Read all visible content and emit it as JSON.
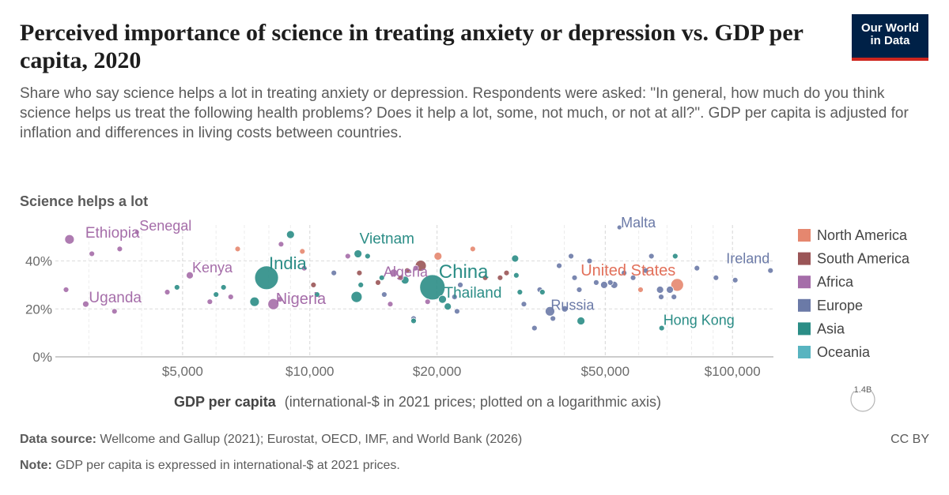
{
  "header": {
    "title": "Perceived importance of science in treating anxiety or depression vs. GDP per capita, 2020",
    "subtitle": "Share who say science helps a lot in treating anxiety or depression. Respondents were asked: \"In general, how much do you think science helps us treat the following health problems? Does it help a lot, some, not much, or not at all?\". GDP per capita is adjusted for inflation and differences in living costs between countries.",
    "logo_line1": "Our World",
    "logo_line2": "in Data"
  },
  "footer": {
    "source_label": "Data source:",
    "source_text": "Wellcome and Gallup (2021); Eurostat, OECD, IMF, and World Bank (2026)",
    "note_label": "Note:",
    "note_text": "GDP per capita is expressed in international-$ at 2021 prices.",
    "license": "CC BY"
  },
  "chart_data": {
    "type": "scatter",
    "title": "Perceived importance of science in treating anxiety or depression vs. GDP per capita, 2020",
    "ylabel": "Science helps a lot",
    "xlabel_bold": "GDP per capita",
    "xlabel_rest": "(international-$ in 2021 prices; plotted on a logarithmic axis)",
    "x_scale": "log",
    "xlim": [
      2500,
      125000
    ],
    "ylim": [
      0,
      55
    ],
    "x_ticks": [
      {
        "value": 5000,
        "label": "$5,000"
      },
      {
        "value": 10000,
        "label": "$10,000"
      },
      {
        "value": 20000,
        "label": "$20,000"
      },
      {
        "value": 50000,
        "label": "$50,000"
      },
      {
        "value": 100000,
        "label": "$100,000"
      }
    ],
    "y_ticks": [
      {
        "value": 0,
        "label": "0%"
      },
      {
        "value": 20,
        "label": "20%"
      },
      {
        "value": 40,
        "label": "40%"
      }
    ],
    "grid": true,
    "legend_position": "right",
    "size_legend_label": "1.4B",
    "legend": [
      {
        "name": "North America",
        "color": "#e5876f"
      },
      {
        "name": "South America",
        "color": "#9a5557"
      },
      {
        "name": "Africa",
        "color": "#a56da9"
      },
      {
        "name": "Europe",
        "color": "#6b7aa7"
      },
      {
        "name": "Asia",
        "color": "#2b8d86"
      },
      {
        "name": "Oceania",
        "color": "#58b4c0"
      }
    ],
    "points": [
      {
        "name": "Ethiopia",
        "x": 2700,
        "y": 49,
        "region": "Africa",
        "r": 6,
        "label": true
      },
      {
        "name": "Senegal",
        "x": 3900,
        "y": 52,
        "region": "Africa",
        "r": 3,
        "label": true
      },
      {
        "name": "Kenya",
        "x": 5200,
        "y": 34,
        "region": "Africa",
        "r": 4.5,
        "label": true
      },
      {
        "name": "India",
        "x": 7900,
        "y": 33,
        "region": "Asia",
        "r": 15,
        "label": true
      },
      {
        "name": "Nigeria",
        "x": 8200,
        "y": 22,
        "region": "Africa",
        "r": 7,
        "label": true
      },
      {
        "name": "Uganda",
        "x": 2950,
        "y": 22,
        "region": "Africa",
        "r": 4,
        "label": true
      },
      {
        "name": "Vietnam",
        "x": 13000,
        "y": 43,
        "region": "Asia",
        "r": 5,
        "label": true
      },
      {
        "name": "China",
        "x": 19500,
        "y": 29,
        "region": "Asia",
        "r": 16,
        "label": true
      },
      {
        "name": "Algeria",
        "x": 15800,
        "y": 35,
        "region": "Africa",
        "r": 5,
        "label": true
      },
      {
        "name": "Thailand",
        "x": 20600,
        "y": 24,
        "region": "Asia",
        "r": 5,
        "label": true
      },
      {
        "name": "United States",
        "x": 74000,
        "y": 30,
        "region": "North America",
        "r": 8,
        "label": true
      },
      {
        "name": "Malta",
        "x": 54000,
        "y": 54,
        "region": "Europe",
        "r": 3,
        "label": true
      },
      {
        "name": "Ireland",
        "x": 123000,
        "y": 36,
        "region": "Europe",
        "r": 3.5,
        "label": true
      },
      {
        "name": "Russia",
        "x": 37000,
        "y": 19,
        "region": "Europe",
        "r": 6,
        "label": true
      },
      {
        "name": "Hong Kong",
        "x": 68000,
        "y": 12,
        "region": "Asia",
        "r": 3.5,
        "label": true
      },
      {
        "name": "",
        "x": 2650,
        "y": 28,
        "region": "Africa",
        "r": 3.5
      },
      {
        "name": "",
        "x": 3050,
        "y": 43,
        "region": "Africa",
        "r": 3.5
      },
      {
        "name": "",
        "x": 3450,
        "y": 19,
        "region": "Africa",
        "r": 3.5
      },
      {
        "name": "",
        "x": 3550,
        "y": 45,
        "region": "Africa",
        "r": 3.5
      },
      {
        "name": "",
        "x": 4850,
        "y": 29,
        "region": "Asia",
        "r": 3.5
      },
      {
        "name": "",
        "x": 4600,
        "y": 27,
        "region": "Africa",
        "r": 3.5
      },
      {
        "name": "",
        "x": 5800,
        "y": 23,
        "region": "Africa",
        "r": 3.5
      },
      {
        "name": "",
        "x": 6000,
        "y": 26,
        "region": "Asia",
        "r": 3.5
      },
      {
        "name": "",
        "x": 6250,
        "y": 29,
        "region": "Asia",
        "r": 3.5
      },
      {
        "name": "",
        "x": 6500,
        "y": 25,
        "region": "Africa",
        "r": 3.5
      },
      {
        "name": "",
        "x": 6750,
        "y": 45,
        "region": "North America",
        "r": 3.5
      },
      {
        "name": "",
        "x": 7400,
        "y": 23,
        "region": "Asia",
        "r": 6
      },
      {
        "name": "",
        "x": 8550,
        "y": 47,
        "region": "Africa",
        "r": 3.5
      },
      {
        "name": "",
        "x": 8500,
        "y": 24,
        "region": "Africa",
        "r": 3.5
      },
      {
        "name": "",
        "x": 9000,
        "y": 51,
        "region": "Asia",
        "r": 5
      },
      {
        "name": "",
        "x": 9600,
        "y": 44,
        "region": "North America",
        "r": 3.5
      },
      {
        "name": "",
        "x": 9700,
        "y": 37,
        "region": "Africa",
        "r": 3.5
      },
      {
        "name": "",
        "x": 10200,
        "y": 30,
        "region": "South America",
        "r": 3.5
      },
      {
        "name": "",
        "x": 10400,
        "y": 26,
        "region": "Asia",
        "r": 3.5
      },
      {
        "name": "",
        "x": 11400,
        "y": 35,
        "region": "Europe",
        "r": 3.5
      },
      {
        "name": "",
        "x": 12300,
        "y": 42,
        "region": "Africa",
        "r": 3.5
      },
      {
        "name": "",
        "x": 12900,
        "y": 25,
        "region": "Asia",
        "r": 7
      },
      {
        "name": "",
        "x": 13100,
        "y": 35,
        "region": "South America",
        "r": 3.5
      },
      {
        "name": "",
        "x": 13200,
        "y": 30,
        "region": "Asia",
        "r": 3.5
      },
      {
        "name": "",
        "x": 13700,
        "y": 42,
        "region": "Asia",
        "r": 3.5
      },
      {
        "name": "",
        "x": 14500,
        "y": 31,
        "region": "South America",
        "r": 3.5
      },
      {
        "name": "",
        "x": 14800,
        "y": 33,
        "region": "Asia",
        "r": 3.5
      },
      {
        "name": "",
        "x": 15000,
        "y": 26,
        "region": "Europe",
        "r": 3.5
      },
      {
        "name": "",
        "x": 15500,
        "y": 22,
        "region": "Africa",
        "r": 3.5
      },
      {
        "name": "",
        "x": 16400,
        "y": 33,
        "region": "South America",
        "r": 3.5
      },
      {
        "name": "",
        "x": 16800,
        "y": 32,
        "region": "Asia",
        "r": 5
      },
      {
        "name": "",
        "x": 17000,
        "y": 36,
        "region": "South America",
        "r": 3.5
      },
      {
        "name": "",
        "x": 17800,
        "y": 37,
        "region": "Africa",
        "r": 3.5
      },
      {
        "name": "",
        "x": 17600,
        "y": 16,
        "region": "Europe",
        "r": 3.5
      },
      {
        "name": "",
        "x": 17600,
        "y": 15,
        "region": "Asia",
        "r": 3.5
      },
      {
        "name": "",
        "x": 18300,
        "y": 38,
        "region": "South America",
        "r": 7
      },
      {
        "name": "",
        "x": 19000,
        "y": 23,
        "region": "Africa",
        "r": 3.5
      },
      {
        "name": "",
        "x": 20100,
        "y": 42,
        "region": "North America",
        "r": 5
      },
      {
        "name": "",
        "x": 21200,
        "y": 21,
        "region": "Asia",
        "r": 4.5
      },
      {
        "name": "",
        "x": 22000,
        "y": 25,
        "region": "Europe",
        "r": 3.5
      },
      {
        "name": "",
        "x": 22300,
        "y": 19,
        "region": "Europe",
        "r": 3.5
      },
      {
        "name": "",
        "x": 22700,
        "y": 30,
        "region": "Europe",
        "r": 3.5
      },
      {
        "name": "",
        "x": 24300,
        "y": 45,
        "region": "North America",
        "r": 3.5
      },
      {
        "name": "",
        "x": 26000,
        "y": 33,
        "region": "South America",
        "r": 3.5
      },
      {
        "name": "",
        "x": 28200,
        "y": 33,
        "region": "South America",
        "r": 3.5
      },
      {
        "name": "",
        "x": 29200,
        "y": 35,
        "region": "South America",
        "r": 3.5
      },
      {
        "name": "",
        "x": 30600,
        "y": 41,
        "region": "Asia",
        "r": 4.5
      },
      {
        "name": "",
        "x": 30800,
        "y": 34,
        "region": "Asia",
        "r": 3.5
      },
      {
        "name": "",
        "x": 31400,
        "y": 27,
        "region": "Asia",
        "r": 3.5
      },
      {
        "name": "",
        "x": 32100,
        "y": 22,
        "region": "Europe",
        "r": 3.5
      },
      {
        "name": "",
        "x": 34000,
        "y": 12,
        "region": "Europe",
        "r": 3.5
      },
      {
        "name": "",
        "x": 35000,
        "y": 28,
        "region": "Europe",
        "r": 3.5
      },
      {
        "name": "",
        "x": 35500,
        "y": 27,
        "region": "Asia",
        "r": 3.5
      },
      {
        "name": "",
        "x": 37600,
        "y": 16,
        "region": "Europe",
        "r": 3.5
      },
      {
        "name": "",
        "x": 38900,
        "y": 38,
        "region": "Europe",
        "r": 3.5
      },
      {
        "name": "",
        "x": 40100,
        "y": 20,
        "region": "Europe",
        "r": 4
      },
      {
        "name": "",
        "x": 41500,
        "y": 42,
        "region": "Europe",
        "r": 3.5
      },
      {
        "name": "",
        "x": 42300,
        "y": 33,
        "region": "Europe",
        "r": 3.5
      },
      {
        "name": "",
        "x": 43400,
        "y": 28,
        "region": "Europe",
        "r": 3.5
      },
      {
        "name": "",
        "x": 43800,
        "y": 15,
        "region": "Asia",
        "r": 5
      },
      {
        "name": "",
        "x": 45900,
        "y": 40,
        "region": "Europe",
        "r": 3.5
      },
      {
        "name": "",
        "x": 47600,
        "y": 31,
        "region": "Europe",
        "r": 3.5
      },
      {
        "name": "",
        "x": 49700,
        "y": 30,
        "region": "Europe",
        "r": 4.5
      },
      {
        "name": "",
        "x": 51400,
        "y": 31,
        "region": "Europe",
        "r": 3.5
      },
      {
        "name": "",
        "x": 52500,
        "y": 30,
        "region": "Europe",
        "r": 4.5
      },
      {
        "name": "",
        "x": 55400,
        "y": 35,
        "region": "Europe",
        "r": 3.5
      },
      {
        "name": "",
        "x": 58200,
        "y": 33,
        "region": "Europe",
        "r": 3.5
      },
      {
        "name": "",
        "x": 60600,
        "y": 28,
        "region": "North America",
        "r": 3.5
      },
      {
        "name": "",
        "x": 62300,
        "y": 36,
        "region": "Europe",
        "r": 3.5
      },
      {
        "name": "",
        "x": 64300,
        "y": 42,
        "region": "Europe",
        "r": 3.5
      },
      {
        "name": "",
        "x": 67400,
        "y": 28,
        "region": "Europe",
        "r": 4.5
      },
      {
        "name": "",
        "x": 67800,
        "y": 25,
        "region": "Europe",
        "r": 3.5
      },
      {
        "name": "",
        "x": 71100,
        "y": 28,
        "region": "Europe",
        "r": 4.5
      },
      {
        "name": "",
        "x": 72700,
        "y": 25,
        "region": "Europe",
        "r": 3.5
      },
      {
        "name": "",
        "x": 73200,
        "y": 42,
        "region": "Asia",
        "r": 3.5
      },
      {
        "name": "",
        "x": 82400,
        "y": 37,
        "region": "Europe",
        "r": 3.5
      },
      {
        "name": "",
        "x": 91400,
        "y": 33,
        "region": "Europe",
        "r": 3.5
      },
      {
        "name": "",
        "x": 101500,
        "y": 32,
        "region": "Europe",
        "r": 3.5
      }
    ]
  }
}
